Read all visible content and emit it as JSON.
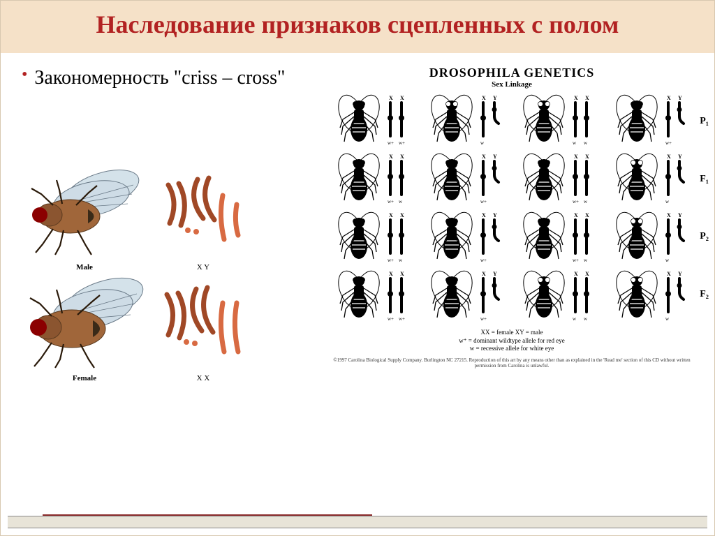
{
  "title": "Наследование признаков сцепленных с полом",
  "bullet": {
    "text": "Закономерность \"criss – cross\"",
    "bullet_color": "#b22222"
  },
  "left_figure": {
    "male_label": "Male",
    "female_label": "Female",
    "male_chrom_label": "X    Y",
    "female_chrom_label": "X    X",
    "fly_body_color": "#a0663a",
    "fly_wing_color": "#c8d8e0",
    "fly_wing_stroke": "#6a7a88",
    "chrom_color": "#d86a42",
    "eye_color": "#8b0000"
  },
  "right_figure": {
    "title": "DROSOPHILA GENETICS",
    "subtitle": "Sex Linkage",
    "row_labels": [
      "P₁",
      "F₁",
      "P₂",
      "F₂"
    ],
    "chrom_labels_top": [
      "X  X",
      "X  Y",
      "X  X",
      "X  Y"
    ],
    "legend_line1": "XX = female      XY = male",
    "legend_line2": "w⁺ = dominant wildtype allele for red eye",
    "legend_line3": "w = recessive allele for white eye",
    "copyright": "©1997 Carolina Biological Supply Company. Burlington NC 27215. Reproduction of this art by any means other than as explained in the 'Read me' section of this CD without written permission from Carolina is unlawful.",
    "rows": [
      [
        {
          "sex": "F",
          "eye": "red",
          "chrom": "XX",
          "alleles": [
            "w+",
            "w+"
          ]
        },
        {
          "sex": "M",
          "eye": "white",
          "chrom": "XY",
          "alleles": [
            "w",
            ""
          ]
        },
        {
          "sex": "F",
          "eye": "white",
          "chrom": "XX",
          "alleles": [
            "w",
            "w"
          ]
        },
        {
          "sex": "M",
          "eye": "red",
          "chrom": "XY",
          "alleles": [
            "w+",
            ""
          ]
        }
      ],
      [
        {
          "sex": "F",
          "eye": "red",
          "chrom": "XX",
          "alleles": [
            "w+",
            "w"
          ]
        },
        {
          "sex": "M",
          "eye": "red",
          "chrom": "XY",
          "alleles": [
            "w+",
            ""
          ]
        },
        {
          "sex": "F",
          "eye": "red",
          "chrom": "XX",
          "alleles": [
            "w+",
            "w"
          ]
        },
        {
          "sex": "M",
          "eye": "white",
          "chrom": "XY",
          "alleles": [
            "w",
            ""
          ]
        }
      ],
      [
        {
          "sex": "F",
          "eye": "red",
          "chrom": "XX",
          "alleles": [
            "w+",
            "w"
          ]
        },
        {
          "sex": "M",
          "eye": "red",
          "chrom": "XY",
          "alleles": [
            "w+",
            ""
          ]
        },
        {
          "sex": "F",
          "eye": "red",
          "chrom": "XX",
          "alleles": [
            "w+",
            "w"
          ]
        },
        {
          "sex": "M",
          "eye": "white",
          "chrom": "XY",
          "alleles": [
            "w",
            ""
          ]
        }
      ],
      [
        {
          "sex": "F",
          "eye": "red",
          "chrom": "XX",
          "alleles": [
            "w+",
            "w+"
          ]
        },
        {
          "sex": "M",
          "eye": "red",
          "chrom": "XY",
          "alleles": [
            "w+",
            ""
          ]
        },
        {
          "sex": "F",
          "eye": "white",
          "chrom": "XX",
          "alleles": [
            "w",
            "w"
          ]
        },
        {
          "sex": "M",
          "eye": "white",
          "chrom": "XY",
          "alleles": [
            "w",
            ""
          ]
        }
      ]
    ],
    "fly_fill": "#222222",
    "eye_red": "#000000",
    "eye_white": "#ffffff",
    "chrom_fill": "#000000"
  },
  "colors": {
    "title_bg": "#f5e1c8",
    "title_text": "#b22222",
    "footer_band": "#e8e4d8",
    "accent": "#8b2a2a"
  }
}
